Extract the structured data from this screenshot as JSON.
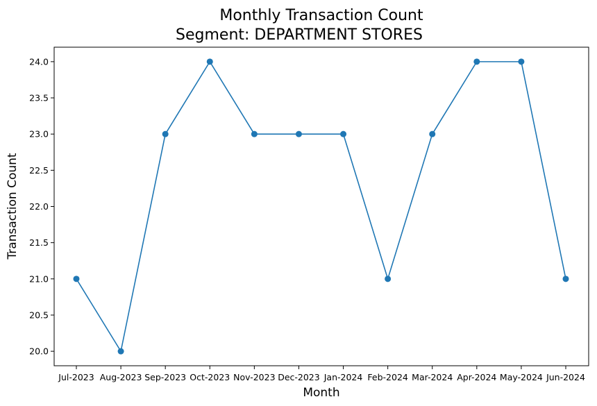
{
  "chart_data": {
    "type": "line",
    "title": "Monthly Transaction Count",
    "subtitle": "Segment: DEPARTMENT STORES",
    "xlabel": "Month",
    "ylabel": "Transaction Count",
    "categories": [
      "Jul-2023",
      "Aug-2023",
      "Sep-2023",
      "Oct-2023",
      "Nov-2023",
      "Dec-2023",
      "Jan-2024",
      "Feb-2024",
      "Mar-2024",
      "Apr-2024",
      "May-2024",
      "Jun-2024"
    ],
    "series": [
      {
        "values": [
          21,
          20,
          23,
          24,
          23,
          23,
          23,
          21,
          23,
          24,
          24,
          21
        ]
      }
    ],
    "ylim": [
      19.8,
      24.2
    ],
    "yticks": [
      "20.0",
      "20.5",
      "21.0",
      "21.5",
      "22.0",
      "22.5",
      "23.0",
      "23.5",
      "24.0"
    ],
    "grid": false,
    "marker": "circle",
    "line_color": "#1f77b4"
  }
}
